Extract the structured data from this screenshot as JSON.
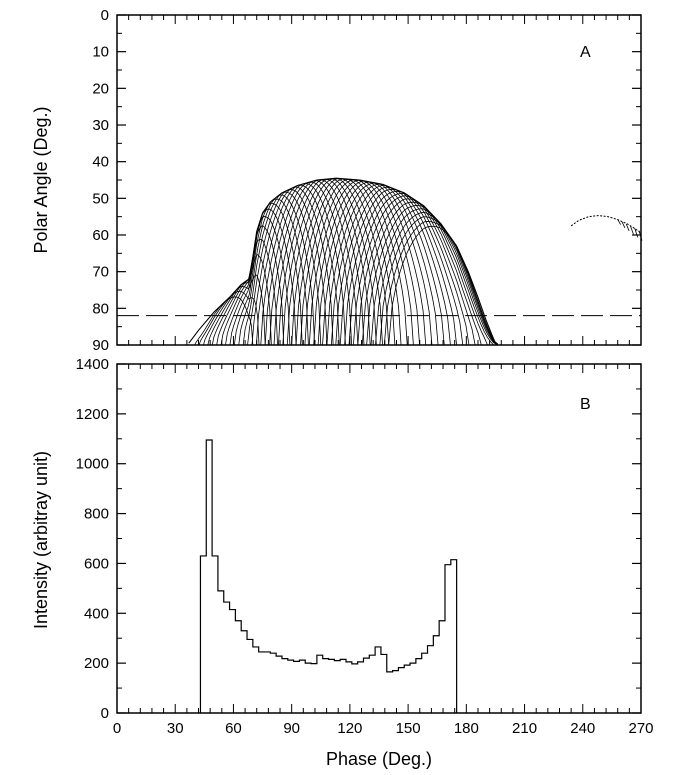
{
  "chart_data": [
    {
      "panel_label": "A",
      "type": "line",
      "xlabel": "",
      "ylabel": "Polar Angle (Deg.)",
      "xlim": [
        0,
        270
      ],
      "ylim": [
        90,
        0
      ],
      "y_ticks": [
        0,
        10,
        20,
        30,
        40,
        50,
        60,
        70,
        80,
        90
      ],
      "y_tick_labels": [
        "0",
        "10",
        "20",
        "30",
        "40",
        "50",
        "60",
        "70",
        "80",
        "90"
      ],
      "x_ticks": [
        0,
        30,
        60,
        90,
        120,
        150,
        180,
        210,
        240,
        270
      ],
      "reference_lines": [
        {
          "y": 82,
          "style": "dashed"
        },
        {
          "y": 90,
          "style": "solid"
        }
      ],
      "envelope": [
        [
          37,
          89.5
        ],
        [
          42,
          86
        ],
        [
          50,
          81
        ],
        [
          58,
          77
        ],
        [
          64,
          73.5
        ],
        [
          68,
          72
        ],
        [
          70,
          66
        ],
        [
          72,
          59
        ],
        [
          75,
          54
        ],
        [
          79,
          51
        ],
        [
          85,
          48.5
        ],
        [
          93,
          46.5
        ],
        [
          103,
          45
        ],
        [
          113,
          44.5
        ],
        [
          125,
          45
        ],
        [
          137,
          46.2
        ],
        [
          148,
          48.5
        ],
        [
          158,
          52
        ],
        [
          167,
          57
        ],
        [
          175,
          63
        ],
        [
          181,
          70
        ],
        [
          186,
          77
        ],
        [
          190,
          83
        ],
        [
          193,
          87
        ],
        [
          195,
          89.5
        ]
      ],
      "arc_family": {
        "count": 45,
        "phase_start": 40,
        "phase_end": 196,
        "note_only_for_drawing": false
      },
      "secondary_curve": [
        [
          234,
          57.5
        ],
        [
          238,
          56
        ],
        [
          243,
          55
        ],
        [
          248,
          54.7
        ],
        [
          253,
          55
        ],
        [
          258,
          55.8
        ],
        [
          263,
          57
        ],
        [
          267,
          58.3
        ],
        [
          270,
          59.5
        ]
      ]
    },
    {
      "panel_label": "B",
      "type": "bar",
      "xlabel": "Phase (Deg.)",
      "ylabel": "Intensity (arbitray unit)",
      "xlim": [
        0,
        270
      ],
      "ylim": [
        0,
        1400
      ],
      "x_ticks": [
        0,
        30,
        60,
        90,
        120,
        150,
        180,
        210,
        240,
        270
      ],
      "x_tick_labels": [
        "0",
        "30",
        "60",
        "90",
        "120",
        "150",
        "180",
        "210",
        "240",
        "270"
      ],
      "y_ticks": [
        0,
        200,
        400,
        600,
        800,
        1000,
        1200,
        1400
      ],
      "y_tick_labels": [
        "0",
        "200",
        "400",
        "600",
        "800",
        "1000",
        "1200",
        "1400"
      ],
      "bin_width": 3,
      "bin_start": 43,
      "values": [
        630,
        1095,
        630,
        490,
        445,
        415,
        370,
        330,
        295,
        265,
        245,
        245,
        240,
        228,
        218,
        212,
        207,
        212,
        200,
        198,
        232,
        218,
        215,
        210,
        215,
        205,
        197,
        205,
        220,
        232,
        265,
        235,
        165,
        170,
        182,
        192,
        200,
        218,
        240,
        270,
        310,
        370,
        595,
        615
      ]
    }
  ]
}
